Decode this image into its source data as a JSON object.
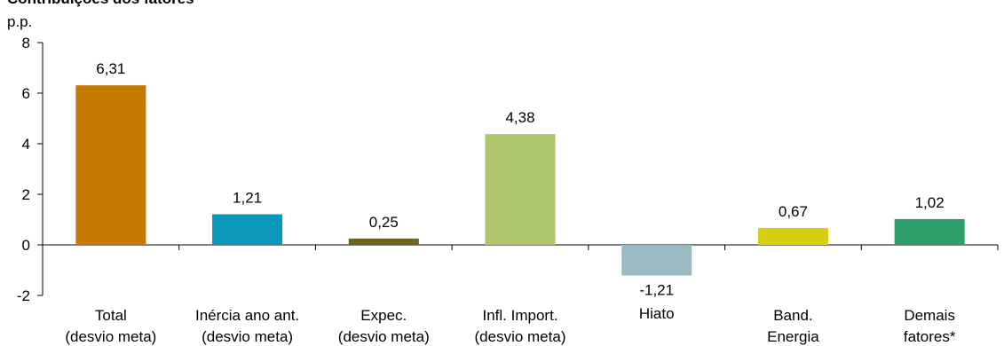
{
  "chart_data": {
    "type": "bar",
    "title": "Contribuições dos fatores",
    "ylabel": "p.p.",
    "xlabel": "",
    "ylim": [
      -2,
      8
    ],
    "yticks": [
      -2,
      0,
      2,
      4,
      6,
      8
    ],
    "grid": false,
    "legend": "none",
    "categories": [
      [
        "Total",
        "(desvio meta)"
      ],
      [
        "Inércia ano ant.",
        "(desvio meta)"
      ],
      [
        "Expec.",
        "(desvio meta)"
      ],
      [
        "Infl. Import.",
        "(desvio meta)"
      ],
      [
        "Hiato"
      ],
      [
        "Band.",
        "Energia"
      ],
      [
        "Demais",
        "fatores*"
      ]
    ],
    "values": [
      6.31,
      1.21,
      0.25,
      4.38,
      -1.21,
      0.67,
      1.02
    ],
    "value_labels": [
      "6,31",
      "1,21",
      "0,25",
      "4,38",
      "-1,21",
      "0,67",
      "1,02"
    ],
    "colors": [
      "#C47A00",
      "#0A97BA",
      "#6E6518",
      "#ADC46A",
      "#9BB9C2",
      "#D7CF10",
      "#2E9E6A"
    ]
  }
}
